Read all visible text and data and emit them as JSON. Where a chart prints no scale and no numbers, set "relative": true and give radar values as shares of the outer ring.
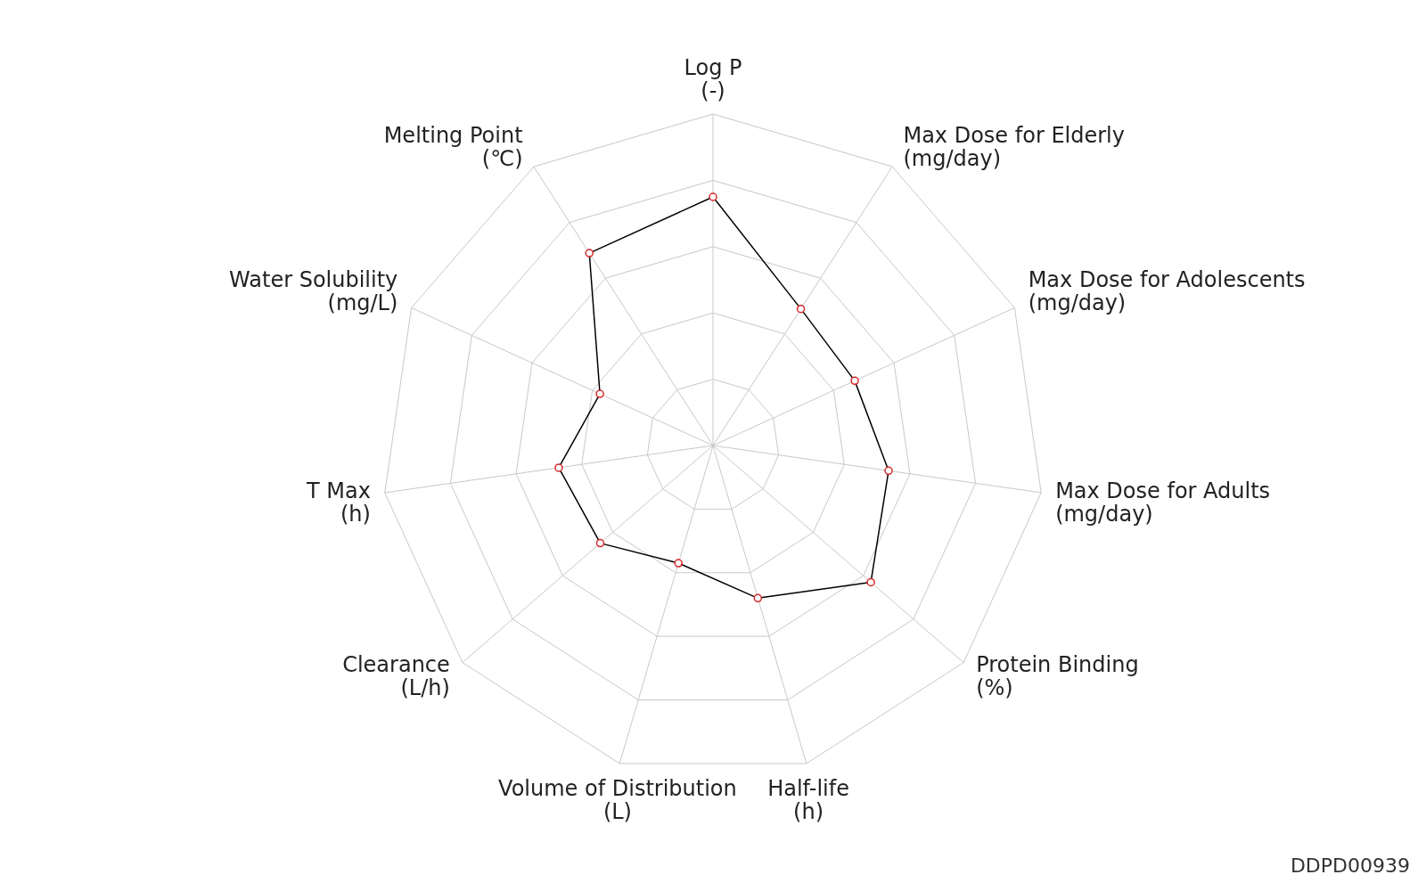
{
  "chart_data": {
    "type": "radar",
    "relative": true,
    "categories": [
      "Log P\n(-)",
      "Max Dose for Elderly\n(mg/day)",
      "Max Dose for Adolescents\n(mg/day)",
      "Max Dose for Adults\n(mg/day)",
      "Protein Binding\n(%)",
      "Half-life\n(h)",
      "Volume of Distribution\n(L)",
      "Clearance\n(L/h)",
      "T Max\n(h)",
      "Water Solubility\n(mg/L)",
      "Melting Point\n(℃)"
    ],
    "series": [
      {
        "color": "#000000",
        "values": [
          0.75,
          0.49,
          0.47,
          0.535,
          0.63,
          0.48,
          0.37,
          0.45,
          0.47,
          0.375,
          0.69
        ]
      }
    ],
    "marker": "circle",
    "legend": false,
    "annotations": [
      "DDPD00939"
    ]
  }
}
